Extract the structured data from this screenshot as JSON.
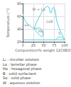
{
  "chart_data": {
    "type": "line",
    "xlabel": "Composition/% weight 12C6EO5",
    "ylabel": "Temperature / °C",
    "xlim": [
      0,
      100
    ],
    "ylim": [
      20,
      80
    ],
    "xticks": [
      0,
      25,
      50,
      75,
      100
    ],
    "yticks": [
      20,
      40,
      60,
      80
    ],
    "grid": true,
    "color": "#55ccdd",
    "series": [
      {
        "x": [
          0,
          1,
          3,
          6,
          10,
          15,
          21,
          27
        ],
        "values": [
          64,
          60,
          56,
          52,
          49,
          46,
          43,
          41
        ]
      },
      {
        "x": [
          27,
          33,
          40,
          47,
          53,
          57,
          60,
          62,
          63
        ],
        "values": [
          41,
          51,
          60,
          68,
          73,
          75,
          76,
          75,
          73
        ]
      },
      {
        "x": [
          63,
          65,
          67,
          69,
          71,
          73,
          75,
          77,
          79,
          80
        ],
        "values": [
          73,
          68,
          65,
          68,
          72,
          74,
          73,
          69,
          62,
          56
        ]
      },
      {
        "x": [
          80,
          83,
          86,
          89,
          92,
          95,
          98,
          100
        ],
        "values": [
          56,
          49,
          43,
          38,
          34,
          30,
          26,
          23
        ]
      },
      {
        "x": [
          27,
          31,
          36,
          41,
          45,
          47,
          48,
          48,
          47,
          45,
          42,
          38,
          34,
          30,
          27
        ],
        "values": [
          41,
          37,
          33,
          30,
          28,
          28,
          30,
          33,
          36,
          39,
          41,
          42,
          41,
          41,
          41
        ]
      },
      {
        "x": [
          0,
          100
        ],
        "values": [
          23,
          23
        ]
      },
      {
        "x": [
          78,
          81,
          85,
          89,
          93,
          97,
          100
        ],
        "values": [
          23,
          25,
          27,
          28,
          27,
          25,
          23
        ]
      }
    ],
    "annotations": [
      {
        "text": "W + Lα",
        "x": 38,
        "y": 71
      },
      {
        "text": "Lα",
        "x": 9,
        "y": 47
      },
      {
        "text": "Hα",
        "x": 43,
        "y": 37
      },
      {
        "text": "Lαβ",
        "x": 64,
        "y": 52
      },
      {
        "text": "S",
        "x": 88,
        "y": 33
      }
    ],
    "caption": [
      "L₁ : micellar solution",
      "Lα : lamellar phase",
      "Hα : hexagonal phase",
      "B : solid surfactant",
      "Sα : solid phase",
      "W : aqueous solution"
    ]
  }
}
